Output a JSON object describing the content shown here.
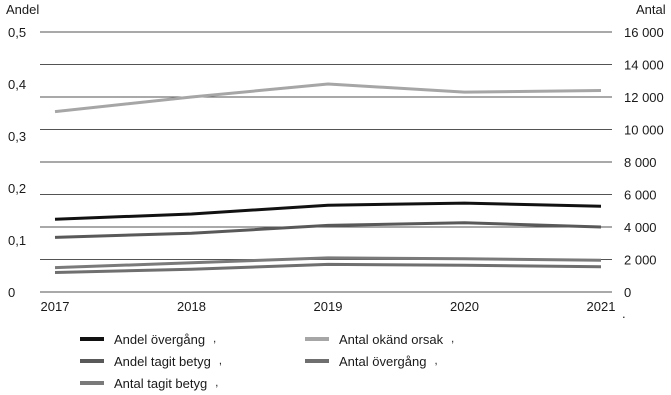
{
  "chart_data": {
    "type": "line",
    "left_axis": {
      "label": "Andel",
      "ticks": [
        "0",
        "0,1",
        "0,2",
        "0,3",
        "0,4",
        "0,5"
      ],
      "tick_values": [
        0,
        0.1,
        0.2,
        0.3,
        0.4,
        0.5
      ],
      "range": [
        0,
        0.5
      ]
    },
    "right_axis": {
      "label": "Antal",
      "ticks": [
        "0",
        "2 000",
        "4 000",
        "6 000",
        "8 000",
        "10 000",
        "12 000",
        "14 000",
        "16 000"
      ],
      "tick_values": [
        0,
        2000,
        4000,
        6000,
        8000,
        10000,
        12000,
        14000,
        16000
      ],
      "range": [
        0,
        16000
      ]
    },
    "categories": [
      "2017",
      "2018",
      "2019",
      "2020",
      "2021"
    ],
    "trailing_mark": ".",
    "series": [
      {
        "name": "Andel övergång",
        "axis": "left",
        "color": "#111111",
        "values": [
          0.14,
          0.15,
          0.167,
          0.171,
          0.165
        ]
      },
      {
        "name": "Antal okänd orsak",
        "axis": "right",
        "color": "#a6a6a6",
        "values": [
          11100,
          12000,
          12800,
          12300,
          12400
        ]
      },
      {
        "name": "Andel tagit betyg",
        "axis": "left",
        "color": "#595959",
        "values": [
          0.105,
          0.113,
          0.128,
          0.133,
          0.125
        ]
      },
      {
        "name": "Antal övergång",
        "axis": "right",
        "color": "#6f6f6f",
        "values": [
          1200,
          1400,
          1700,
          1650,
          1550
        ]
      },
      {
        "name": "Antal tagit betyg",
        "axis": "right",
        "color": "#7a7a7a",
        "values": [
          1500,
          1800,
          2100,
          2050,
          1950
        ]
      }
    ],
    "legend_separator": ",",
    "grid": true,
    "legend_position": "bottom"
  }
}
